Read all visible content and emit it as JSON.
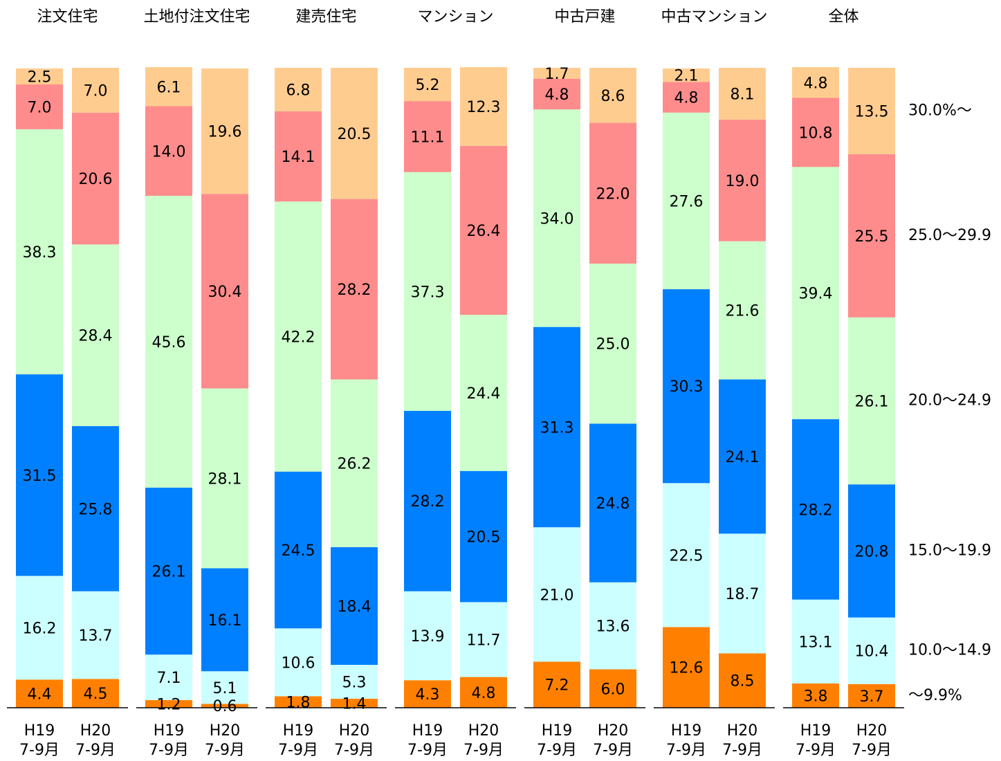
{
  "chart_data": {
    "type": "stacked_bar",
    "groups": [
      "注文住宅",
      "土地付注文住宅",
      "建売住宅",
      "マンション",
      "中古戸建",
      "中古マンション",
      "全体"
    ],
    "bar_labels": [
      {
        "period": "H19",
        "months": "7-9月"
      },
      {
        "period": "H20",
        "months": "7-9月"
      }
    ],
    "ylim": [
      0,
      100
    ],
    "series": [
      {
        "name": "～9.9%",
        "color": "#ff8000",
        "values": [
          4.4,
          4.5,
          1.2,
          0.6,
          1.8,
          1.4,
          4.3,
          4.8,
          7.2,
          6.0,
          12.6,
          8.5,
          3.8,
          3.7
        ],
        "value_labels": [
          "4.4",
          "4.5",
          "1.2",
          "0.6",
          "1.8",
          "1.4",
          "4.3",
          "4.8",
          "7.2",
          "6.0",
          "12.6",
          "8.5",
          "3.8",
          "3.7"
        ]
      },
      {
        "name": "10.0～14.9",
        "color": "#ccffff",
        "values": [
          16.2,
          13.7,
          7.1,
          5.1,
          10.6,
          5.3,
          13.9,
          11.7,
          21.0,
          13.6,
          22.5,
          18.7,
          13.1,
          10.4
        ],
        "value_labels": [
          "16.2",
          "13.7",
          "7.1",
          "5.1",
          "10.6",
          "5.3",
          "13.9",
          "11.7",
          "21.0",
          "13.6",
          "22.5",
          "18.7",
          "13.1",
          "10.4"
        ]
      },
      {
        "name": "15.0～19.9",
        "color": "#0080ff",
        "values": [
          31.5,
          25.8,
          26.1,
          16.1,
          24.5,
          18.4,
          28.2,
          20.5,
          31.3,
          24.8,
          30.3,
          24.1,
          28.2,
          20.8
        ],
        "value_labels": [
          "31.5",
          "25.8",
          "26.1",
          "16.1",
          "24.5",
          "18.4",
          "28.2",
          "20.5",
          "31.3",
          "24.8",
          "30.3",
          "24.1",
          "28.2",
          "20.8"
        ]
      },
      {
        "name": "20.0～24.9",
        "color": "#ccffcc",
        "values": [
          38.3,
          28.4,
          45.6,
          28.1,
          42.2,
          26.2,
          37.3,
          24.4,
          34.0,
          25.0,
          27.6,
          21.6,
          39.4,
          26.1
        ],
        "value_labels": [
          "38.3",
          "28.4",
          "45.6",
          "28.1",
          "42.2",
          "26.2",
          "37.3",
          "24.4",
          "34.0",
          "25.0",
          "27.6",
          "21.6",
          "39.4",
          "26.1"
        ]
      },
      {
        "name": "25.0～29.9",
        "color": "#ff8c8c",
        "values": [
          7.0,
          20.6,
          14.0,
          30.4,
          14.1,
          28.2,
          11.1,
          26.4,
          4.8,
          22.0,
          4.8,
          19.0,
          10.8,
          25.5
        ],
        "value_labels": [
          "7.0",
          "20.6",
          "14.0",
          "30.4",
          "14.1",
          "28.2",
          "11.1",
          "26.4",
          "4.8",
          "22.0",
          "4.8",
          "19.0",
          "10.8",
          "25.5"
        ]
      },
      {
        "name": "30.0%～",
        "color": "#ffcc90",
        "values": [
          2.5,
          7.0,
          6.1,
          19.6,
          6.8,
          20.5,
          5.2,
          12.3,
          1.7,
          8.6,
          2.1,
          8.1,
          4.8,
          13.5
        ],
        "value_labels": [
          "2.5",
          "7.0",
          "6.1",
          "19.6",
          "6.8",
          "20.5",
          "5.2",
          "12.3",
          "1.7",
          "8.6",
          "2.1",
          "8.1",
          "4.8",
          "13.5"
        ]
      }
    ]
  }
}
